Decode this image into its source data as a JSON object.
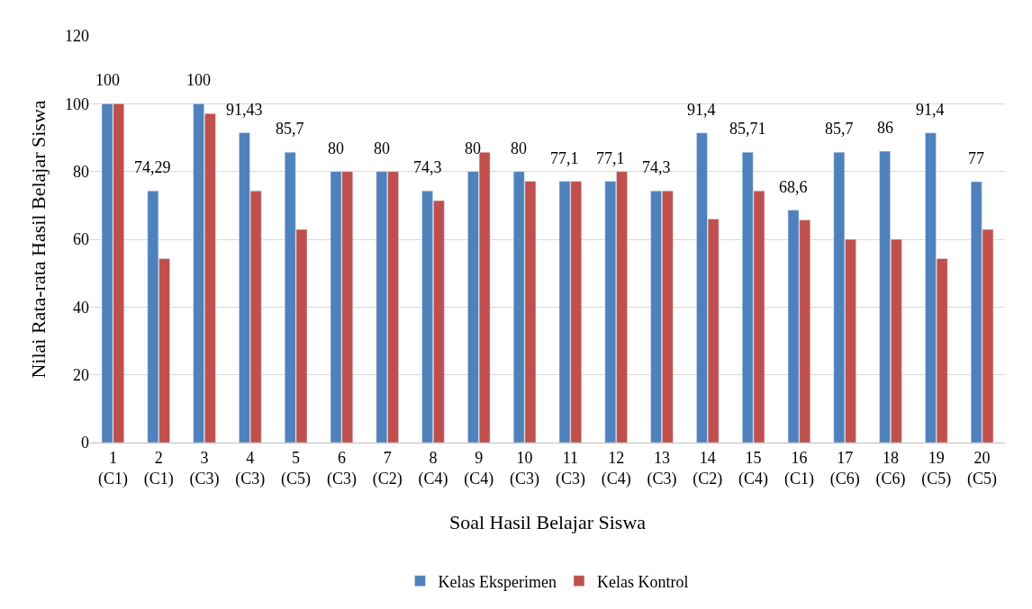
{
  "chart_data": {
    "type": "bar",
    "xlabel": "Soal Hasil Belajar Siswa",
    "ylabel": "Nilai Rata-rata Hasil Belajar Siswa",
    "categories": [
      "1\n(C1)",
      "2\n(C1)",
      "3\n(C3)",
      "4\n(C3)",
      "5\n(C5)",
      "6\n(C3)",
      "7\n(C2)",
      "8\n(C4)",
      "9\n(C4)",
      "10\n(C3)",
      "11\n(C3)",
      "12\n(C4)",
      "13\n(C3)",
      "14\n(C2)",
      "15\n(C4)",
      "16\n(C1)",
      "17\n(C6)",
      "18\n(C6)",
      "19\n(C5)",
      "20\n(C5)"
    ],
    "series": [
      {
        "name": "Kelas Eksperimen",
        "color": "#4f81bd",
        "values": [
          100,
          74.29,
          100,
          91.43,
          85.7,
          80,
          80,
          74.3,
          80,
          80,
          77.1,
          77.1,
          74.3,
          91.4,
          85.71,
          68.6,
          85.7,
          86,
          91.4,
          77
        ],
        "value_labels": [
          "100",
          "74,29",
          "100",
          "91,43",
          "85,7",
          "80",
          "80",
          "74,3",
          "80",
          "80",
          "77,1",
          "77,1",
          "74,3",
          "91,4",
          "85,71",
          "68,6",
          "85,7",
          "86",
          "91,4",
          "77"
        ]
      },
      {
        "name": "Kelas Kontrol",
        "color": "#c0504d",
        "values": [
          100,
          54.3,
          97.1,
          74.3,
          62.9,
          80,
          80,
          71.4,
          85.7,
          77.1,
          77.1,
          80,
          74.3,
          66,
          74.3,
          65.7,
          60,
          60,
          54.3,
          62.9
        ]
      }
    ],
    "ylim": [
      0,
      120
    ],
    "yticks": [
      0,
      20,
      40,
      60,
      80,
      100,
      120
    ],
    "grid": "y",
    "legend": "bottom"
  }
}
